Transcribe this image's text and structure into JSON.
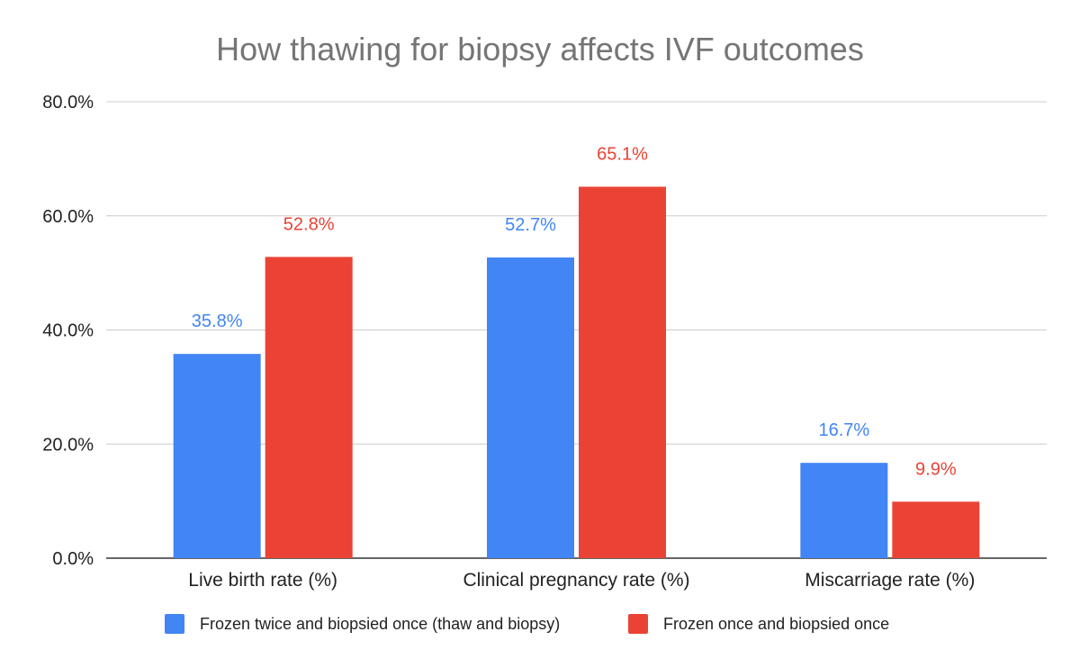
{
  "chart_data": {
    "type": "bar",
    "title": "How thawing for biopsy affects IVF outcomes",
    "categories": [
      "Live birth rate (%)",
      "Clinical pregnancy rate (%)",
      "Miscarriage rate (%)"
    ],
    "series": [
      {
        "name": "Frozen twice and biopsied once (thaw and biopsy)",
        "color": "#4285f4",
        "values": [
          35.8,
          52.7,
          16.7
        ],
        "labels": [
          "35.8%",
          "52.7%",
          "16.7%"
        ]
      },
      {
        "name": "Frozen once and biopsied once",
        "color": "#ea4335",
        "values": [
          52.8,
          65.1,
          9.9
        ],
        "labels": [
          "52.8%",
          "65.1%",
          "9.9%"
        ]
      }
    ],
    "ylim": [
      0,
      80
    ],
    "yticks": [
      "0.0%",
      "20.0%",
      "40.0%",
      "60.0%",
      "80.0%"
    ],
    "grid": true,
    "legend_position": "bottom"
  }
}
